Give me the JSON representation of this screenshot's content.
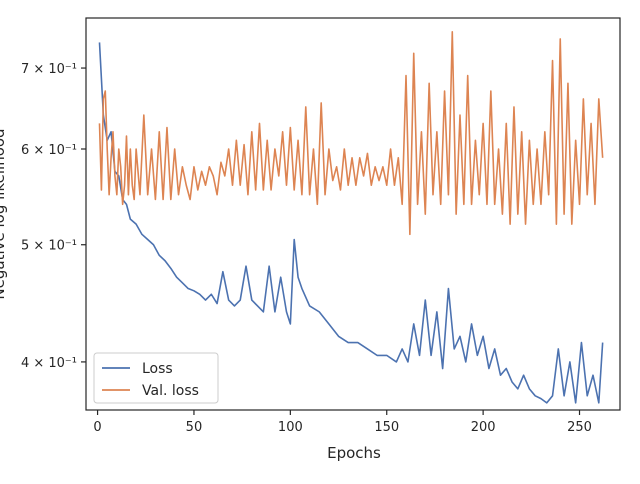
{
  "chart_data": {
    "type": "line",
    "xlabel": "Epochs",
    "ylabel": "Negative log likelihood",
    "xlim": [
      -6,
      271
    ],
    "ylim": [
      0.365,
      0.77
    ],
    "yscale": "log",
    "xticks": [
      0,
      50,
      100,
      150,
      200,
      250
    ],
    "yticks": [
      {
        "value": 0.4,
        "label": "4 × 10⁻¹"
      },
      {
        "value": 0.5,
        "label": "5 × 10⁻¹"
      },
      {
        "value": 0.6,
        "label": "6 × 10⁻¹"
      },
      {
        "value": 0.7,
        "label": "7 × 10⁻¹"
      }
    ],
    "grid": false,
    "legend_position": "lower-left",
    "series": [
      {
        "name": "Loss",
        "color": "#4c72b0",
        "x": [
          1,
          3,
          5,
          7,
          9,
          11,
          13,
          15,
          17,
          20,
          23,
          26,
          29,
          32,
          35,
          38,
          41,
          44,
          47,
          50,
          53,
          56,
          59,
          62,
          65,
          68,
          71,
          74,
          77,
          80,
          83,
          86,
          89,
          92,
          95,
          98,
          100,
          102,
          104,
          106,
          110,
          115,
          120,
          125,
          130,
          135,
          140,
          145,
          150,
          155,
          158,
          161,
          164,
          167,
          170,
          173,
          176,
          179,
          182,
          185,
          188,
          191,
          194,
          197,
          200,
          203,
          206,
          209,
          212,
          215,
          218,
          221,
          224,
          227,
          230,
          233,
          236,
          239,
          242,
          245,
          248,
          251,
          254,
          257,
          260,
          262
        ],
        "values": [
          0.735,
          0.64,
          0.61,
          0.62,
          0.575,
          0.57,
          0.545,
          0.54,
          0.525,
          0.52,
          0.51,
          0.505,
          0.5,
          0.49,
          0.485,
          0.478,
          0.47,
          0.465,
          0.46,
          0.458,
          0.455,
          0.45,
          0.455,
          0.447,
          0.475,
          0.45,
          0.445,
          0.45,
          0.48,
          0.45,
          0.445,
          0.44,
          0.48,
          0.44,
          0.47,
          0.44,
          0.43,
          0.505,
          0.47,
          0.46,
          0.445,
          0.44,
          0.43,
          0.42,
          0.415,
          0.415,
          0.41,
          0.405,
          0.405,
          0.4,
          0.41,
          0.4,
          0.43,
          0.405,
          0.45,
          0.405,
          0.44,
          0.395,
          0.46,
          0.41,
          0.42,
          0.4,
          0.43,
          0.405,
          0.42,
          0.395,
          0.41,
          0.39,
          0.395,
          0.385,
          0.38,
          0.39,
          0.38,
          0.375,
          0.373,
          0.37,
          0.375,
          0.41,
          0.375,
          0.4,
          0.37,
          0.415,
          0.375,
          0.39,
          0.37,
          0.415
        ]
      },
      {
        "name": "Val. loss",
        "color": "#dd8452",
        "x": [
          1,
          2,
          3,
          4,
          5,
          6,
          7,
          8,
          9,
          10,
          11,
          12,
          13,
          14,
          15,
          16,
          17,
          18,
          19,
          20,
          22,
          24,
          26,
          28,
          30,
          32,
          34,
          36,
          38,
          40,
          42,
          44,
          46,
          48,
          50,
          52,
          54,
          56,
          58,
          60,
          62,
          64,
          66,
          68,
          70,
          72,
          74,
          76,
          78,
          80,
          82,
          84,
          86,
          88,
          90,
          92,
          94,
          96,
          98,
          100,
          102,
          104,
          106,
          108,
          110,
          112,
          114,
          116,
          118,
          120,
          122,
          124,
          126,
          128,
          130,
          132,
          134,
          136,
          138,
          140,
          142,
          144,
          146,
          148,
          150,
          152,
          154,
          156,
          158,
          160,
          162,
          164,
          166,
          168,
          170,
          172,
          174,
          176,
          178,
          180,
          182,
          184,
          186,
          188,
          190,
          192,
          194,
          196,
          198,
          200,
          202,
          204,
          206,
          208,
          210,
          212,
          214,
          216,
          218,
          220,
          222,
          224,
          226,
          228,
          230,
          232,
          234,
          236,
          238,
          240,
          242,
          244,
          246,
          248,
          250,
          252,
          254,
          256,
          258,
          260,
          262
        ],
        "values": [
          0.63,
          0.555,
          0.66,
          0.67,
          0.6,
          0.55,
          0.59,
          0.62,
          0.57,
          0.55,
          0.6,
          0.58,
          0.54,
          0.56,
          0.615,
          0.55,
          0.6,
          0.56,
          0.545,
          0.6,
          0.55,
          0.64,
          0.55,
          0.6,
          0.545,
          0.62,
          0.545,
          0.625,
          0.545,
          0.6,
          0.55,
          0.58,
          0.56,
          0.545,
          0.58,
          0.555,
          0.575,
          0.56,
          0.58,
          0.57,
          0.55,
          0.585,
          0.57,
          0.6,
          0.56,
          0.61,
          0.56,
          0.605,
          0.55,
          0.62,
          0.555,
          0.63,
          0.555,
          0.61,
          0.555,
          0.6,
          0.57,
          0.62,
          0.56,
          0.625,
          0.555,
          0.61,
          0.55,
          0.65,
          0.55,
          0.6,
          0.54,
          0.655,
          0.55,
          0.6,
          0.565,
          0.58,
          0.555,
          0.6,
          0.56,
          0.59,
          0.56,
          0.59,
          0.57,
          0.595,
          0.56,
          0.58,
          0.565,
          0.58,
          0.56,
          0.6,
          0.56,
          0.59,
          0.54,
          0.69,
          0.51,
          0.72,
          0.54,
          0.62,
          0.53,
          0.68,
          0.55,
          0.62,
          0.54,
          0.67,
          0.55,
          0.75,
          0.53,
          0.64,
          0.54,
          0.69,
          0.54,
          0.61,
          0.55,
          0.63,
          0.54,
          0.67,
          0.54,
          0.6,
          0.53,
          0.63,
          0.52,
          0.65,
          0.53,
          0.62,
          0.52,
          0.61,
          0.54,
          0.6,
          0.54,
          0.62,
          0.55,
          0.71,
          0.52,
          0.74,
          0.53,
          0.68,
          0.52,
          0.61,
          0.54,
          0.66,
          0.55,
          0.63,
          0.54,
          0.66,
          0.59
        ]
      }
    ]
  }
}
